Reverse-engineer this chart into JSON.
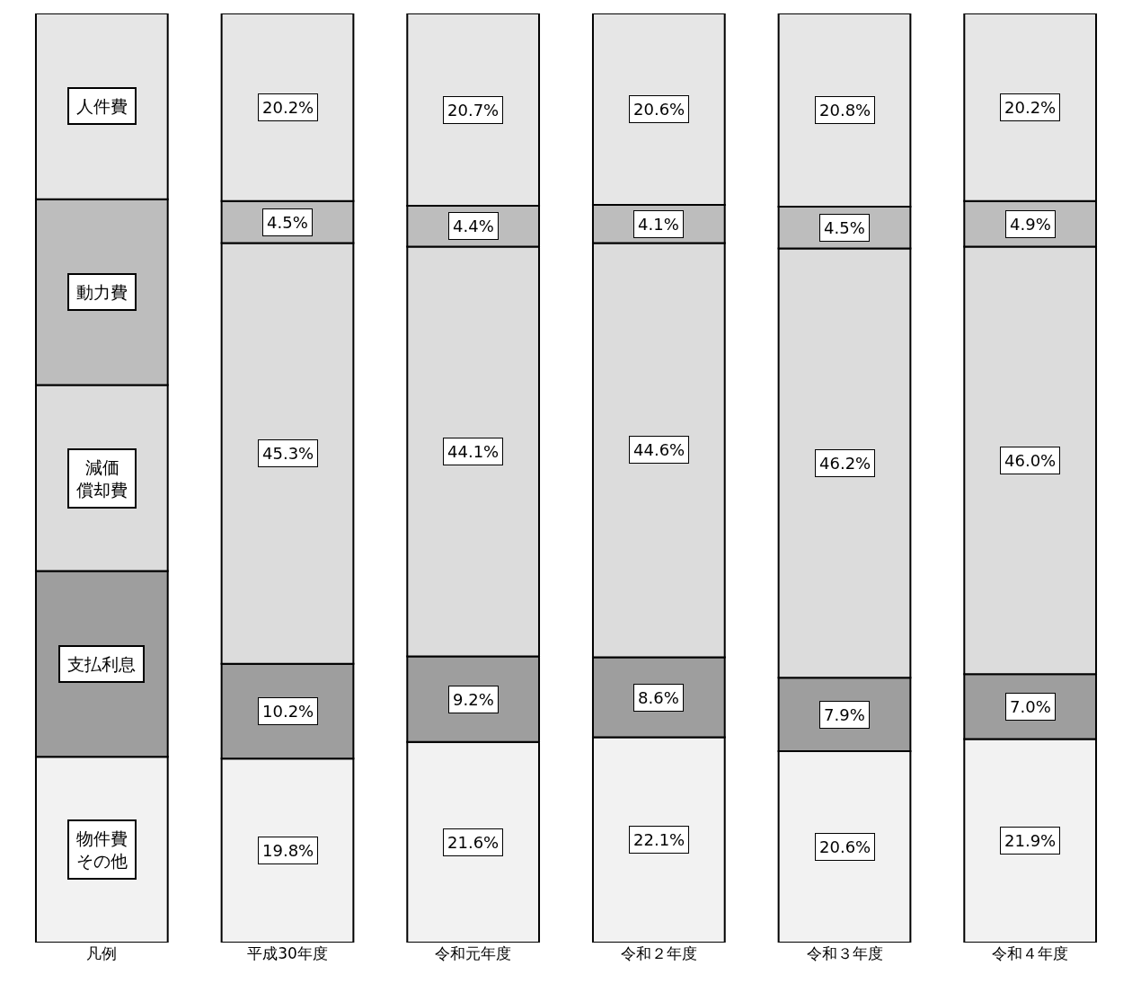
{
  "chart_data": {
    "type": "bar",
    "stacked": true,
    "legend": "left",
    "legend_title": "凡例",
    "categories": [
      "平成30年度",
      "令和元年度",
      "令和２年度",
      "令和３年度",
      "令和４年度"
    ],
    "series": [
      {
        "name": "物件費その他",
        "color": "#f2f2f2",
        "values": [
          19.8,
          21.6,
          22.1,
          20.6,
          21.9
        ],
        "value_labels": [
          "19.8%",
          "21.6%",
          "22.1%",
          "20.6%",
          "21.9%"
        ]
      },
      {
        "name": "支払利息",
        "color": "#9e9e9e",
        "values": [
          10.2,
          9.2,
          8.6,
          7.9,
          7.0
        ],
        "value_labels": [
          "10.2%",
          "9.2%",
          "8.6%",
          "7.9%",
          "7.0%"
        ]
      },
      {
        "name": "減価償却費",
        "color": "#dcdcdc",
        "values": [
          45.3,
          44.1,
          44.6,
          46.2,
          46.0
        ],
        "value_labels": [
          "45.3%",
          "44.1%",
          "44.6%",
          "46.2%",
          "46.0%"
        ]
      },
      {
        "name": "動力費",
        "color": "#bdbdbd",
        "values": [
          4.5,
          4.4,
          4.1,
          4.5,
          4.9
        ],
        "value_labels": [
          "4.5%",
          "4.4%",
          "4.1%",
          "4.5%",
          "4.9%"
        ]
      },
      {
        "name": "人件費",
        "color": "#e6e6e6",
        "values": [
          20.2,
          20.7,
          20.6,
          20.8,
          20.2
        ],
        "value_labels": [
          "20.2%",
          "20.7%",
          "20.6%",
          "20.8%",
          "20.2%"
        ]
      }
    ]
  }
}
